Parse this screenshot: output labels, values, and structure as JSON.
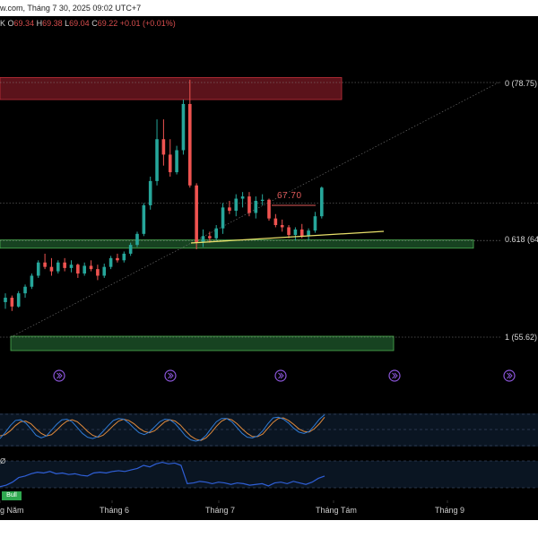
{
  "header": {
    "title": "w.com, Tháng 7 30, 2025 09:02 UTC+7"
  },
  "ohlc": {
    "symbol": "K",
    "open_label": "O",
    "open": "69.34",
    "high_label": "H",
    "high": "69.38",
    "low_label": "L",
    "low": "69.04",
    "close_label": "C",
    "close": "69.22",
    "change": "+0.01 (+0.01%)"
  },
  "annotations": {
    "price_marker": "67.70",
    "fib_0": "0 (78.75)",
    "fib_618": "0.618 (64.4",
    "fib_1": "1 (55.62)",
    "bull_badge": "Bull",
    "indicator_zero": "Ø"
  },
  "time_axis": {
    "labels": [
      "g Năm",
      "Tháng 6",
      "Tháng 7",
      "Tháng Tám",
      "Tháng 9"
    ]
  },
  "colors": {
    "up": "#26a69a",
    "down": "#ef5350",
    "background": "#000000",
    "zone_red": "#7a1a24",
    "zone_green": "#1f5a2c",
    "stoch_k": "#2f7bd6",
    "stoch_d": "#e08a3c",
    "indicator_line": "#2f5fd6",
    "trendline": "#e8e06a",
    "replay_icon": "#8a55d8"
  },
  "chart_data": {
    "type": "candlestick",
    "title": "",
    "ylim": [
      52,
      82
    ],
    "candles": [
      [
        58.8,
        59.6,
        58.2,
        59.2
      ],
      [
        59.2,
        59.4,
        58.0,
        58.4
      ],
      [
        58.4,
        59.8,
        58.3,
        59.6
      ],
      [
        59.6,
        60.4,
        59.2,
        60.2
      ],
      [
        60.2,
        61.4,
        60.0,
        61.2
      ],
      [
        61.2,
        62.6,
        61.0,
        62.4
      ],
      [
        62.4,
        63.2,
        61.8,
        62.0
      ],
      [
        62.0,
        62.8,
        61.2,
        61.6
      ],
      [
        61.6,
        62.6,
        61.4,
        62.4
      ],
      [
        62.4,
        62.8,
        61.6,
        61.9
      ],
      [
        61.9,
        62.6,
        61.5,
        62.2
      ],
      [
        62.2,
        62.3,
        61.0,
        61.4
      ],
      [
        61.4,
        62.4,
        61.2,
        62.1
      ],
      [
        62.1,
        62.6,
        61.6,
        61.8
      ],
      [
        61.8,
        62.2,
        60.8,
        61.2
      ],
      [
        61.2,
        62.3,
        61.0,
        62.0
      ],
      [
        62.0,
        63.0,
        61.8,
        62.8
      ],
      [
        62.8,
        63.2,
        62.4,
        62.6
      ],
      [
        62.6,
        63.4,
        62.4,
        63.2
      ],
      [
        63.2,
        64.2,
        63.0,
        64.0
      ],
      [
        64.0,
        65.2,
        63.8,
        65.0
      ],
      [
        65.0,
        67.8,
        64.8,
        67.6
      ],
      [
        67.6,
        70.2,
        67.2,
        69.8
      ],
      [
        69.8,
        75.4,
        69.4,
        73.6
      ],
      [
        73.6,
        75.4,
        71.2,
        72.2
      ],
      [
        72.2,
        73.6,
        70.2,
        70.6
      ],
      [
        70.6,
        73.0,
        70.4,
        72.6
      ],
      [
        72.6,
        77.2,
        72.2,
        76.8
      ],
      [
        76.8,
        79.0,
        69.2,
        69.4
      ],
      [
        69.4,
        69.6,
        63.6,
        64.2
      ],
      [
        64.2,
        65.4,
        63.8,
        64.8
      ],
      [
        64.8,
        65.2,
        64.2,
        64.6
      ],
      [
        64.6,
        65.8,
        64.4,
        65.5
      ],
      [
        65.5,
        67.8,
        65.0,
        67.4
      ],
      [
        67.4,
        68.0,
        66.8,
        67.1
      ],
      [
        67.1,
        68.6,
        66.6,
        68.2
      ],
      [
        68.2,
        68.8,
        67.4,
        68.4
      ],
      [
        68.4,
        68.8,
        66.6,
        66.9
      ],
      [
        66.9,
        68.4,
        66.4,
        68.0
      ],
      [
        68.0,
        68.6,
        67.6,
        68.1
      ],
      [
        68.1,
        68.2,
        66.2,
        66.4
      ],
      [
        66.4,
        66.8,
        65.6,
        65.8
      ],
      [
        65.8,
        66.3,
        65.2,
        65.6
      ],
      [
        65.6,
        65.8,
        64.6,
        64.9
      ],
      [
        64.9,
        65.6,
        64.4,
        65.4
      ],
      [
        65.4,
        65.9,
        64.6,
        64.8
      ],
      [
        64.8,
        65.5,
        64.4,
        65.3
      ],
      [
        65.3,
        67.0,
        65.1,
        66.6
      ],
      [
        66.6,
        69.3,
        66.4,
        69.2
      ]
    ],
    "zones": [
      {
        "name": "resistance",
        "y_top": 79.2,
        "y_bottom": 77.2
      },
      {
        "name": "fib-0.618-support",
        "y_top": 64.45,
        "y_bottom": 63.7
      },
      {
        "name": "fib-1-support",
        "y_top": 55.7,
        "y_bottom": 54.4
      }
    ],
    "fib_levels": [
      {
        "ratio": 0,
        "value": 78.75
      },
      {
        "ratio": 0.618,
        "value": 64.4
      },
      {
        "ratio": 1,
        "value": 55.62
      }
    ],
    "stochastic": {
      "k": [
        22,
        40,
        62,
        78,
        80,
        70,
        52,
        32,
        24,
        30,
        48,
        66,
        80,
        82,
        74,
        56,
        38,
        26,
        22,
        28,
        44,
        62,
        78,
        84,
        82,
        70,
        54,
        40,
        34,
        42,
        58,
        74,
        82,
        80,
        68,
        50,
        30,
        18,
        14,
        18,
        32,
        54,
        74,
        84,
        84,
        74,
        56,
        38,
        26,
        24,
        30,
        46,
        68,
        86,
        88,
        82,
        70,
        54,
        42,
        38,
        44,
        62,
        82,
        96
      ],
      "d": [
        30,
        34,
        46,
        62,
        74,
        76,
        68,
        52,
        38,
        30,
        34,
        48,
        64,
        76,
        80,
        74,
        60,
        44,
        32,
        26,
        32,
        46,
        62,
        76,
        82,
        78,
        68,
        54,
        44,
        40,
        46,
        60,
        74,
        80,
        76,
        64,
        46,
        30,
        20,
        16,
        24,
        40,
        60,
        76,
        84,
        80,
        68,
        52,
        38,
        28,
        28,
        36,
        54,
        72,
        84,
        86,
        78,
        66,
        52,
        44,
        42,
        52,
        68,
        88
      ]
    },
    "momentum": {
      "values": [
        -8,
        -6,
        -2,
        4,
        6,
        9,
        11,
        10,
        12,
        9,
        10,
        8,
        9,
        7,
        6,
        10,
        11,
        10,
        12,
        13,
        12,
        14,
        16,
        20,
        18,
        22,
        24,
        22,
        23,
        20,
        -4,
        -3,
        -1,
        -2,
        -4,
        -2,
        -3,
        -5,
        -3,
        -4,
        -6,
        -5,
        -4,
        -7,
        -3,
        -2,
        -4,
        -1,
        -3,
        -5,
        -2,
        3,
        6
      ]
    }
  }
}
